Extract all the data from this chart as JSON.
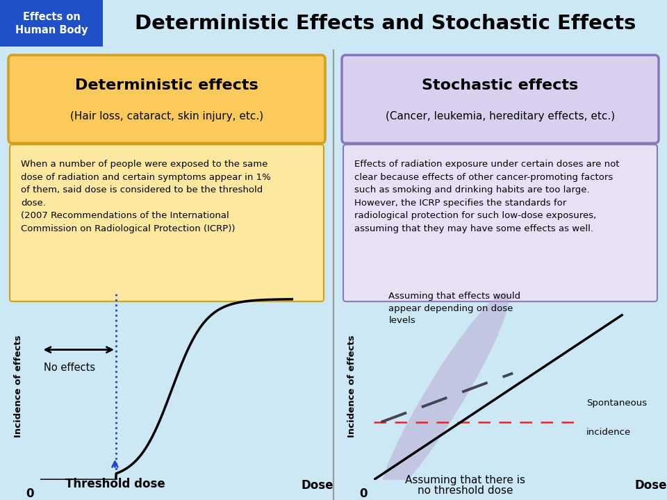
{
  "title": "Deterministic Effects and Stochastic Effects",
  "header_label": "Effects on\nHuman Body",
  "header_bg": "#1e50c8",
  "header_text_color": "#ffffff",
  "title_color": "#000000",
  "bg_top": "#cce8f4",
  "bg_main": "#ffffff",
  "divider_color": "#999999",
  "det_title": "Deterministic effects",
  "det_subtitle": "(Hair loss, cataract, skin injury, etc.)",
  "det_box_bg": "#f9c95a",
  "det_box_border": "#d4a017",
  "det_text_lines": [
    "When a number of people were exposed to the same",
    "dose of radiation and certain symptoms appear in 1%",
    "of them, said dose is considered to be the threshold",
    "dose.",
    "(2007 Recommendations of the International",
    "Commission on Radiological Protection (ICRP))"
  ],
  "det_text_box_bg": "#fde8a0",
  "det_text_box_border": "#d4a017",
  "sto_title": "Stochastic effects",
  "sto_subtitle": "(Cancer, leukemia, hereditary effects, etc.)",
  "sto_box_bg": "#d8d0ee",
  "sto_box_border": "#8877bb",
  "sto_text_lines": [
    "Effects of radiation exposure under certain doses are not",
    "clear because effects of other cancer-promoting factors",
    "such as smoking and drinking habits are too large.",
    "However, the ICRP specifies the standards for",
    "radiological protection for such low-dose exposures,",
    "assuming that they may have some effects as well."
  ],
  "sto_text_box_bg": "#e8e0f4",
  "sto_text_box_border": "#8877bb",
  "thresh_label": "Threshold dose",
  "thresh_box_bg": "#c8dff4",
  "no_effects_label": "No effects",
  "dose_label": "Dose",
  "incidence_label": "Incidence of effects",
  "no_thresh_label_line1": "Assuming that there is",
  "no_thresh_label_line2": "no threshold dose",
  "no_thresh_box_bg": "#c8dff4",
  "spontaneous_label_line1": "Spontaneous",
  "spontaneous_label_line2": "incidence",
  "assuming_label": "Assuming that effects would\nappear depending on dose\nlevels",
  "sigmoid_color": "#000000",
  "linear_color": "#000000",
  "dashed_color": "#444455",
  "red_dash_color": "#ee2222",
  "blue_dot_color": "#2244cc",
  "ellipse_color": "#b89ed0"
}
